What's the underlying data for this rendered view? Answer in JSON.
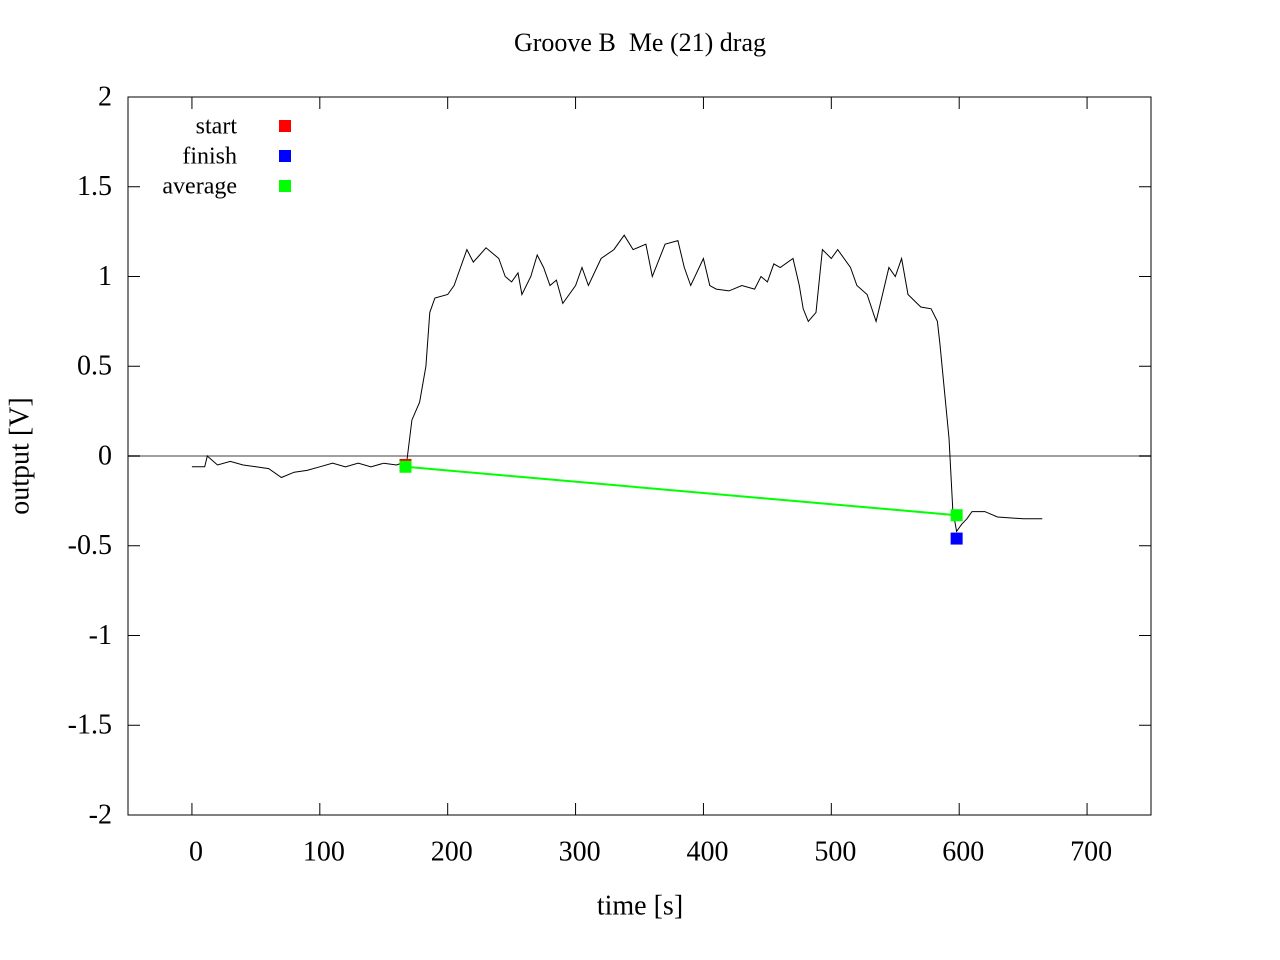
{
  "chart_data": {
    "type": "line",
    "title": "Groove B  Me (21) drag",
    "xlabel": "time [s]",
    "ylabel": "output [V]",
    "xlim": [
      -50,
      750
    ],
    "ylim": [
      -2,
      2
    ],
    "xticks": [
      0,
      100,
      200,
      300,
      400,
      500,
      600,
      700
    ],
    "yticks": [
      -2,
      -1.5,
      -1,
      -0.5,
      0,
      0.5,
      1,
      1.5,
      2
    ],
    "signal": {
      "color": "#000000",
      "x": [
        0,
        10,
        12,
        20,
        30,
        40,
        50,
        60,
        70,
        80,
        90,
        100,
        110,
        120,
        130,
        140,
        150,
        160,
        168,
        172,
        178,
        183,
        186,
        190,
        200,
        205,
        210,
        215,
        220,
        225,
        230,
        240,
        245,
        250,
        255,
        258,
        265,
        270,
        275,
        280,
        285,
        290,
        300,
        305,
        310,
        320,
        330,
        338,
        345,
        355,
        360,
        370,
        380,
        385,
        390,
        400,
        405,
        410,
        420,
        430,
        440,
        445,
        450,
        455,
        460,
        470,
        475,
        478,
        482,
        488,
        493,
        500,
        505,
        515,
        520,
        528,
        535,
        540,
        545,
        550,
        555,
        560,
        570,
        578,
        583,
        585,
        588,
        592,
        595,
        598,
        602,
        606,
        610,
        620,
        630,
        650,
        665
      ],
      "y": [
        -0.06,
        -0.06,
        0.0,
        -0.05,
        -0.03,
        -0.05,
        -0.06,
        -0.07,
        -0.12,
        -0.09,
        -0.08,
        -0.06,
        -0.04,
        -0.06,
        -0.04,
        -0.06,
        -0.04,
        -0.05,
        -0.03,
        0.2,
        0.3,
        0.5,
        0.8,
        0.88,
        0.9,
        0.95,
        1.05,
        1.15,
        1.08,
        1.12,
        1.16,
        1.1,
        1.0,
        0.97,
        1.02,
        0.9,
        1.0,
        1.12,
        1.05,
        0.95,
        0.98,
        0.85,
        0.95,
        1.05,
        0.95,
        1.1,
        1.15,
        1.23,
        1.15,
        1.18,
        1.0,
        1.18,
        1.2,
        1.05,
        0.95,
        1.1,
        0.95,
        0.93,
        0.92,
        0.95,
        0.93,
        1.0,
        0.97,
        1.07,
        1.05,
        1.1,
        0.95,
        0.82,
        0.75,
        0.8,
        1.15,
        1.1,
        1.15,
        1.05,
        0.95,
        0.9,
        0.75,
        0.9,
        1.05,
        1.0,
        1.1,
        0.9,
        0.83,
        0.82,
        0.75,
        0.62,
        0.4,
        0.1,
        -0.3,
        -0.42,
        -0.38,
        -0.35,
        -0.31,
        -0.31,
        -0.34,
        -0.35,
        -0.35
      ]
    },
    "series": [
      {
        "name": "start",
        "color": "#ff0000",
        "x": [
          167
        ],
        "values": [
          -0.05
        ]
      },
      {
        "name": "finish",
        "color": "#0000ff",
        "x": [
          598
        ],
        "values": [
          -0.46
        ]
      },
      {
        "name": "average",
        "color": "#00ff00",
        "x": [
          167,
          598
        ],
        "values": [
          -0.06,
          -0.33
        ]
      }
    ]
  }
}
